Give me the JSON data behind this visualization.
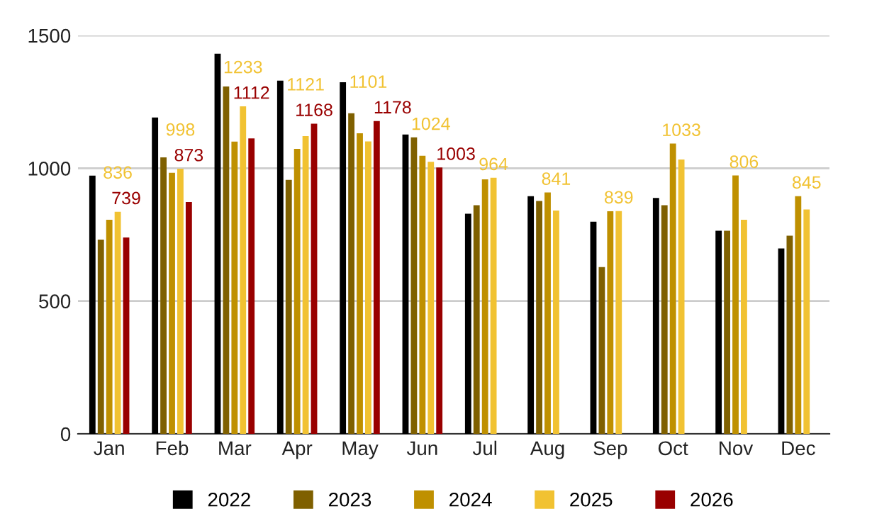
{
  "chart_data": {
    "type": "bar",
    "categories": [
      "Jan",
      "Feb",
      "Mar",
      "Apr",
      "May",
      "Jun",
      "Jul",
      "Aug",
      "Sep",
      "Oct",
      "Nov",
      "Dec"
    ],
    "series": [
      {
        "name": "2022",
        "color": "#000000",
        "values": [
          972,
          1191,
          1431,
          1330,
          1324,
          1127,
          829,
          895,
          799,
          888,
          765,
          698
        ]
      },
      {
        "name": "2023",
        "color": "#7f6000",
        "values": [
          731,
          1041,
          1308,
          956,
          1207,
          1116,
          861,
          877,
          628,
          861,
          765,
          746
        ]
      },
      {
        "name": "2024",
        "color": "#bf9000",
        "values": [
          806,
          983,
          1100,
          1073,
          1132,
          1047,
          958,
          909,
          838,
          1093,
          973,
          895
        ]
      },
      {
        "name": "2025",
        "color": "#f1c232",
        "values": [
          836,
          998,
          1233,
          1121,
          1101,
          1024,
          964,
          841,
          839,
          1033,
          806,
          845
        ],
        "value_labels": [
          "836",
          "998",
          "1233",
          "1121",
          "1101",
          "1024",
          "964",
          "841",
          "839",
          "1033",
          "806",
          "845"
        ]
      },
      {
        "name": "2026",
        "color": "#990000",
        "values": [
          739,
          873,
          1112,
          1168,
          1178,
          1003,
          null,
          null,
          null,
          null,
          null,
          null
        ],
        "value_labels": [
          "739",
          "873",
          "1112",
          "1168",
          "1178",
          "1003",
          null,
          null,
          null,
          null,
          null,
          null
        ]
      }
    ],
    "ylim": [
      0,
      1500
    ],
    "yticks": [
      0,
      500,
      1000,
      1500
    ],
    "grid": "y",
    "legend": "bottom"
  }
}
